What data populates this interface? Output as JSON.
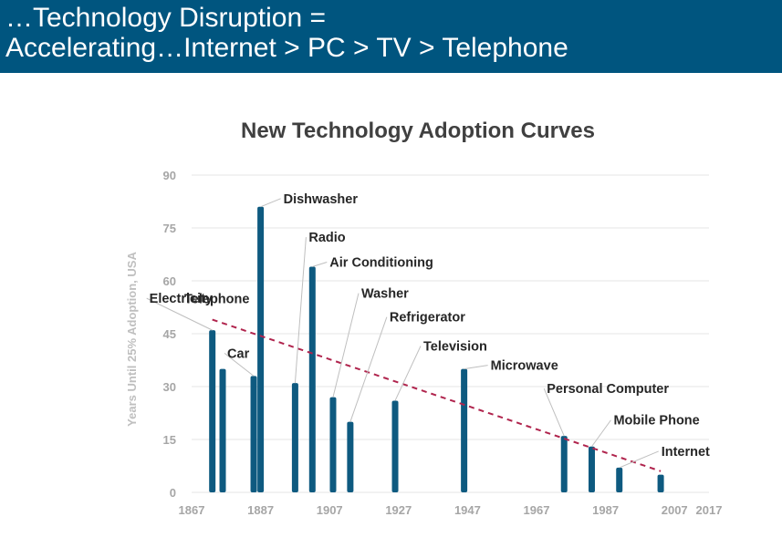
{
  "header": {
    "line1": "…Technology Disruption =",
    "line2": "Accelerating…Internet > PC > TV > Telephone"
  },
  "colors": {
    "header_bg": "#00557f",
    "bar": "#0e5a80",
    "trend": "#b0244d"
  },
  "chart_data": {
    "type": "bar",
    "title": "New Technology Adoption Curves",
    "ylabel": "Years Until 25% Adoption, USA",
    "xlabel": "",
    "xlim": [
      1867,
      2017
    ],
    "ylim": [
      0,
      90
    ],
    "x_ticks": [
      1867,
      1887,
      1907,
      1927,
      1947,
      1967,
      1987,
      2007,
      2017
    ],
    "y_ticks": [
      0,
      15,
      30,
      45,
      60,
      75,
      90
    ],
    "grid": true,
    "series": [
      {
        "name": "Electricity",
        "year": 1873,
        "years": 46
      },
      {
        "name": "Telephone",
        "year": 1876,
        "years": 35
      },
      {
        "name": "Car",
        "year": 1885,
        "years": 33
      },
      {
        "name": "Dishwasher",
        "year": 1887,
        "years": 81
      },
      {
        "name": "Radio",
        "year": 1897,
        "years": 31
      },
      {
        "name": "Air Conditioning",
        "year": 1902,
        "years": 64
      },
      {
        "name": "Washer",
        "year": 1908,
        "years": 27
      },
      {
        "name": "Refrigerator",
        "year": 1913,
        "years": 20
      },
      {
        "name": "Television",
        "year": 1926,
        "years": 26
      },
      {
        "name": "Microwave",
        "year": 1946,
        "years": 35
      },
      {
        "name": "Personal Computer",
        "year": 1975,
        "years": 16
      },
      {
        "name": "Mobile Phone",
        "year": 1983,
        "years": 13
      },
      {
        "name": "Internet",
        "year": 1991,
        "years": 7
      },
      {
        "name": "",
        "year": 2003,
        "years": 5
      }
    ],
    "trendline": {
      "style": "dashed",
      "from": [
        1873,
        49
      ],
      "to": [
        2003,
        6
      ]
    }
  }
}
